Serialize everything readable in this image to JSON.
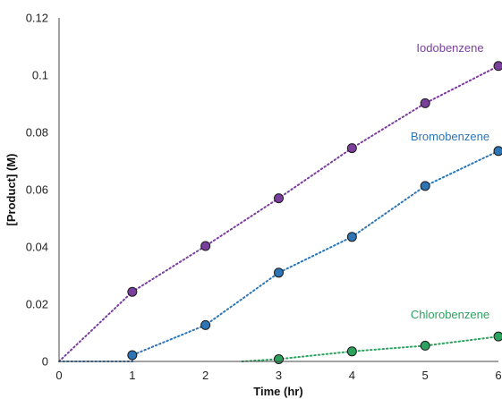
{
  "chart_data": {
    "type": "scatter",
    "xlabel": "Time (hr)",
    "ylabel": "[Product] (M)",
    "xlim": [
      0,
      6
    ],
    "ylim": [
      0,
      0.12
    ],
    "x_ticks": [
      "0",
      "1",
      "2",
      "3",
      "4",
      "5",
      "6"
    ],
    "y_ticks": [
      "0",
      "0.02",
      "0.04",
      "0.06",
      "0.08",
      "0.1",
      "0.12"
    ],
    "grid": false,
    "legend": "inline labels near series ends",
    "series": [
      {
        "name": "Iodobenzene",
        "color": "#7a3e9d",
        "line_style": "dotted",
        "line_points": [
          [
            0,
            0
          ],
          [
            1,
            0.0243
          ],
          [
            2,
            0.0403
          ],
          [
            3,
            0.057
          ],
          [
            4,
            0.0745
          ],
          [
            5,
            0.0902
          ],
          [
            6,
            0.1032
          ]
        ],
        "markers": [
          [
            1,
            0.0243
          ],
          [
            2,
            0.0403
          ],
          [
            3,
            0.057
          ],
          [
            4,
            0.0745
          ],
          [
            5,
            0.0902
          ],
          [
            6,
            0.1032
          ]
        ]
      },
      {
        "name": "Bromobenzene",
        "color": "#2e75b6",
        "line_style": "dotted",
        "line_points": [
          [
            0,
            0
          ],
          [
            1,
            0
          ],
          [
            1,
            0.0022
          ],
          [
            2,
            0.0127
          ],
          [
            3,
            0.031
          ],
          [
            4,
            0.0435
          ],
          [
            5,
            0.0613
          ],
          [
            6,
            0.0735
          ]
        ],
        "markers": [
          [
            1,
            0.0022
          ],
          [
            2,
            0.0127
          ],
          [
            3,
            0.031
          ],
          [
            4,
            0.0435
          ],
          [
            5,
            0.0613
          ],
          [
            6,
            0.0735
          ]
        ]
      },
      {
        "name": "Chlorobenzene",
        "color": "#2ca25f",
        "line_style": "dotted",
        "line_points": [
          [
            2.5,
            0
          ],
          [
            3,
            0.0008
          ],
          [
            4,
            0.0035
          ],
          [
            5,
            0.0055
          ],
          [
            6,
            0.0087
          ]
        ],
        "markers": [
          [
            3,
            0.0008
          ],
          [
            4,
            0.0035
          ],
          [
            5,
            0.0055
          ],
          [
            6,
            0.0087
          ]
        ]
      }
    ]
  }
}
